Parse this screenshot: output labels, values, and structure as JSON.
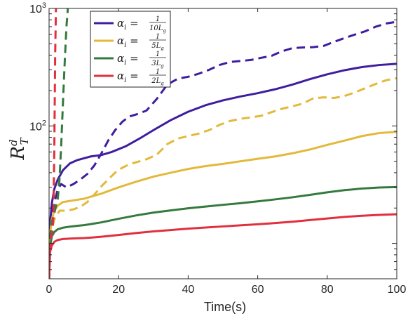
{
  "chart_data": {
    "type": "line",
    "title": "",
    "xlabel": "Time(s)",
    "ylabel": {
      "base": "R",
      "sup": "d",
      "sub": "T"
    },
    "xlim": [
      0,
      100
    ],
    "ylim": [
      5,
      1000
    ],
    "yscale": "log",
    "x_ticks": [
      0,
      20,
      40,
      60,
      80,
      100
    ],
    "y_ticks": [
      {
        "value": 100,
        "base": "10",
        "exp": "2"
      },
      {
        "value": 1000,
        "base": "10",
        "exp": "3"
      }
    ],
    "grid": false,
    "legend": {
      "placement": "top-left",
      "entries": [
        {
          "var": "α",
          "sub": "i",
          "eq": " = ",
          "num": "1",
          "den_main": "10L",
          "den_sub": "g",
          "color": "#3f1d9e"
        },
        {
          "var": "α",
          "sub": "i",
          "eq": " = ",
          "num": "1",
          "den_main": "5L",
          "den_sub": "g",
          "color": "#e2b93b"
        },
        {
          "var": "α",
          "sub": "i",
          "eq": " = ",
          "num": "1",
          "den_main": "3L",
          "den_sub": "g",
          "color": "#347a3e"
        },
        {
          "var": "α",
          "sub": "i",
          "eq": " = ",
          "num": "1",
          "den_main": "2L",
          "den_sub": "g",
          "color": "#e0303e"
        }
      ]
    },
    "series": [
      {
        "group": 0,
        "style": "solid",
        "color": "#3f1d9e",
        "x": [
          0,
          0.3,
          0.8,
          1.5,
          2.5,
          4,
          6,
          8,
          10,
          12,
          15,
          18,
          22,
          26,
          30,
          35,
          40,
          45,
          50,
          55,
          60,
          65,
          70,
          75,
          80,
          85,
          90,
          95,
          100
        ],
        "y": [
          5,
          15,
          22,
          29,
          35,
          42,
          48,
          51,
          53,
          55,
          56.5,
          60,
          67,
          78,
          92,
          112,
          132,
          150,
          165,
          178,
          190,
          205,
          225,
          250,
          275,
          298,
          317,
          330,
          338
        ]
      },
      {
        "group": 0,
        "style": "dashed",
        "color": "#3f1d9e",
        "x": [
          0,
          0.5,
          1.5,
          2.5,
          3.5,
          5,
          7,
          9,
          11,
          13,
          15,
          17,
          19,
          21,
          23,
          25,
          28,
          31,
          34,
          37,
          40,
          43,
          46,
          49,
          52,
          55,
          58,
          61,
          64,
          67,
          70,
          73,
          76,
          79,
          82,
          85,
          88,
          91,
          94,
          97,
          100
        ],
        "y": [
          5,
          15,
          22,
          29,
          32,
          30,
          32,
          35,
          39,
          46,
          58,
          75,
          92,
          108,
          120,
          125,
          135,
          170,
          225,
          252,
          262,
          278,
          300,
          330,
          350,
          357,
          364,
          380,
          395,
          432,
          460,
          465,
          468,
          480,
          520,
          560,
          600,
          640,
          700,
          745,
          770
        ]
      },
      {
        "group": 1,
        "style": "solid",
        "color": "#e2b93b",
        "x": [
          0,
          0.3,
          0.8,
          1.5,
          2.5,
          4,
          6,
          8,
          10,
          12,
          15,
          20,
          25,
          30,
          35,
          40,
          45,
          50,
          55,
          60,
          65,
          70,
          75,
          80,
          85,
          90,
          95,
          100
        ],
        "y": [
          5,
          12,
          16,
          19,
          21,
          22.5,
          23,
          23.5,
          24,
          25,
          26.5,
          30,
          33.5,
          37,
          40,
          43,
          45.5,
          47.5,
          50,
          52.5,
          55,
          58.5,
          63,
          69,
          75,
          82,
          87,
          89
        ]
      },
      {
        "group": 1,
        "style": "dashed",
        "color": "#e2b93b",
        "x": [
          0,
          0.5,
          1.5,
          3,
          5,
          7,
          9,
          11,
          13,
          15,
          17,
          19,
          21,
          23,
          25,
          28,
          31,
          34,
          37,
          40,
          43,
          46,
          49,
          52,
          55,
          58,
          61,
          64,
          67,
          70,
          73,
          76,
          79,
          82,
          85,
          88,
          91,
          94,
          97,
          100
        ],
        "y": [
          5,
          12,
          16,
          19,
          19,
          19.5,
          20.5,
          22.5,
          26,
          30.5,
          35,
          40,
          44,
          47,
          49,
          52,
          57,
          70,
          78,
          82,
          86,
          92,
          102,
          110,
          115,
          118,
          122,
          131,
          140,
          147,
          155,
          172,
          175,
          173,
          180,
          193,
          210,
          228,
          245,
          255
        ]
      },
      {
        "group": 2,
        "style": "solid",
        "color": "#347a3e",
        "x": [
          0,
          0.3,
          0.8,
          1.5,
          2.5,
          4,
          6,
          8,
          10,
          12,
          15,
          20,
          25,
          30,
          35,
          40,
          45,
          50,
          55,
          60,
          65,
          70,
          75,
          80,
          85,
          90,
          95,
          100
        ],
        "y": [
          5,
          9.5,
          11.5,
          12.5,
          13.2,
          13.6,
          13.9,
          14.1,
          14.3,
          14.6,
          15.1,
          16.2,
          17.3,
          18.3,
          19.1,
          19.9,
          20.6,
          21.3,
          22,
          22.8,
          23.7,
          24.7,
          25.9,
          27.2,
          28.4,
          29.3,
          29.9,
          30.2
        ]
      },
      {
        "group": 2,
        "style": "dashed",
        "color": "#347a3e",
        "x": [
          0,
          0.4,
          0.8,
          1.2,
          1.6,
          2,
          2.5,
          3,
          3.5,
          4,
          4.5,
          5,
          5.5
        ],
        "y": [
          5,
          12,
          15,
          17,
          18.5,
          21,
          24,
          35,
          70,
          160,
          350,
          700,
          1100
        ]
      },
      {
        "group": 3,
        "style": "solid",
        "color": "#e0303e",
        "x": [
          0,
          0.3,
          0.8,
          1.5,
          2.5,
          4,
          6,
          8,
          10,
          12,
          15,
          20,
          25,
          30,
          35,
          40,
          45,
          50,
          55,
          60,
          65,
          70,
          75,
          80,
          85,
          90,
          95,
          100
        ],
        "y": [
          5,
          8.5,
          9.6,
          10.3,
          10.7,
          10.9,
          11.0,
          11.05,
          11.1,
          11.2,
          11.4,
          11.8,
          12.25,
          12.65,
          13.0,
          13.35,
          13.65,
          13.95,
          14.25,
          14.55,
          14.9,
          15.3,
          15.8,
          16.3,
          16.8,
          17.2,
          17.5,
          17.7
        ]
      },
      {
        "group": 3,
        "style": "dashed",
        "color": "#e0303e",
        "x": [
          0,
          0.25,
          0.5,
          0.75,
          1.0,
          1.25,
          1.5,
          1.75,
          2.0
        ],
        "y": [
          5,
          9,
          11,
          12,
          13,
          17,
          60,
          400,
          1100
        ]
      }
    ]
  }
}
